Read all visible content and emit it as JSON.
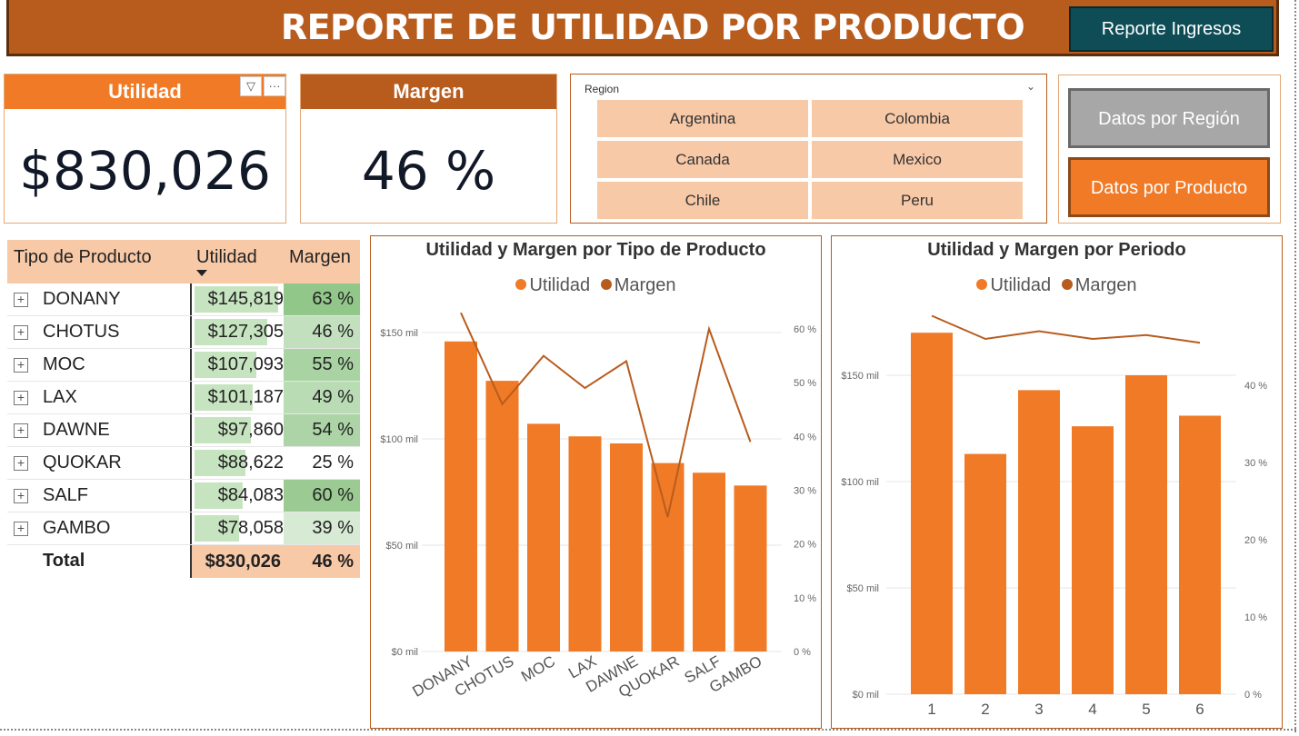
{
  "header": {
    "title": "REPORTE DE UTILIDAD POR PRODUCTO",
    "nav_button": "Reporte Ingresos"
  },
  "kpis": {
    "utilidad": {
      "label": "Utilidad",
      "value": "$830,026",
      "filter_icon": "▽",
      "more_icon": "···"
    },
    "margen": {
      "label": "Margen",
      "value": "46 %"
    }
  },
  "colors": {
    "accent": "#f07a25",
    "dark": "#b85c1e",
    "teal": "#0e4d55",
    "peach": "#f8c9a7"
  },
  "slicer": {
    "label": "Region",
    "chevron": "⌄",
    "items": [
      "Argentina",
      "Colombia",
      "Canada",
      "Mexico",
      "Chile",
      "Peru"
    ]
  },
  "nav": {
    "region_label": "Datos por Región",
    "producto_label": "Datos por Producto"
  },
  "matrix": {
    "headers": [
      "Tipo de Producto",
      "Utilidad",
      "Margen"
    ],
    "expand_glyph": "+",
    "rows": [
      {
        "name": "DONANY",
        "utilidad": "$145,819",
        "util_value": 145819,
        "margen": "63 %",
        "margin_value": 63
      },
      {
        "name": "CHOTUS",
        "utilidad": "$127,305",
        "util_value": 127305,
        "margen": "46 %",
        "margin_value": 46
      },
      {
        "name": "MOC",
        "utilidad": "$107,093",
        "util_value": 107093,
        "margen": "55 %",
        "margin_value": 55
      },
      {
        "name": "LAX",
        "utilidad": "$101,187",
        "util_value": 101187,
        "margen": "49 %",
        "margin_value": 49
      },
      {
        "name": "DAWNE",
        "utilidad": "$97,860",
        "util_value": 97860,
        "margen": "54 %",
        "margin_value": 54
      },
      {
        "name": "QUOKAR",
        "utilidad": "$88,622",
        "util_value": 88622,
        "margen": "25 %",
        "margin_value": 25
      },
      {
        "name": "SALF",
        "utilidad": "$84,083",
        "util_value": 84083,
        "margen": "60 %",
        "margin_value": 60
      },
      {
        "name": "GAMBO",
        "utilidad": "$78,058",
        "util_value": 78058,
        "margen": "39 %",
        "margin_value": 39
      }
    ],
    "total": {
      "label": "Total",
      "utilidad": "$830,026",
      "margen": "46 %"
    }
  },
  "chart_data": [
    {
      "type": "bar",
      "title": "Utilidad y Margen por Tipo de Producto",
      "legend": [
        "Utilidad",
        "Margen"
      ],
      "legend_position": "top",
      "categories": [
        "DONANY",
        "CHOTUS",
        "MOC",
        "LAX",
        "DAWNE",
        "QUOKAR",
        "SALF",
        "GAMBO"
      ],
      "series": [
        {
          "name": "Utilidad",
          "type": "bar",
          "axis": "left",
          "color": "#f07a25",
          "values": [
            145819,
            127305,
            107093,
            101187,
            97860,
            88622,
            84083,
            78058
          ]
        },
        {
          "name": "Margen",
          "type": "line",
          "axis": "right",
          "color": "#b85c1e",
          "values": [
            63,
            46,
            55,
            49,
            54,
            25,
            60,
            39
          ]
        }
      ],
      "y_left": {
        "range": [
          0,
          150000
        ],
        "ticks": [
          "$0 mil",
          "$50 mil",
          "$100 mil",
          "$150 mil"
        ],
        "tick_values": [
          0,
          50000,
          100000,
          150000
        ]
      },
      "y_right": {
        "range": [
          0,
          60
        ],
        "ticks": [
          "0 %",
          "10 %",
          "20 %",
          "30 %",
          "40 %",
          "50 %",
          "60 %"
        ],
        "tick_values": [
          0,
          10,
          20,
          30,
          40,
          50,
          60
        ]
      }
    },
    {
      "type": "bar",
      "title": "Utilidad y Margen por Periodo",
      "legend": [
        "Utilidad",
        "Margen"
      ],
      "legend_position": "top",
      "categories": [
        "1",
        "2",
        "3",
        "4",
        "5",
        "6"
      ],
      "series": [
        {
          "name": "Utilidad",
          "type": "bar",
          "axis": "left",
          "color": "#f07a25",
          "values": [
            170000,
            113000,
            143000,
            126000,
            150000,
            131000
          ]
        },
        {
          "name": "Margen",
          "type": "line",
          "axis": "right",
          "color": "#b85c1e",
          "values": [
            49,
            46,
            47,
            46,
            46.5,
            45.5
          ]
        }
      ],
      "y_left": {
        "range": [
          0,
          150000
        ],
        "ticks": [
          "$0 mil",
          "$50 mil",
          "$100 mil",
          "$150 mil"
        ],
        "tick_values": [
          0,
          50000,
          100000,
          150000
        ]
      },
      "y_right": {
        "range": [
          0,
          40
        ],
        "ticks": [
          "0 %",
          "10 %",
          "20 %",
          "30 %",
          "40 %"
        ],
        "tick_values": [
          0,
          10,
          20,
          30,
          40
        ]
      }
    }
  ]
}
